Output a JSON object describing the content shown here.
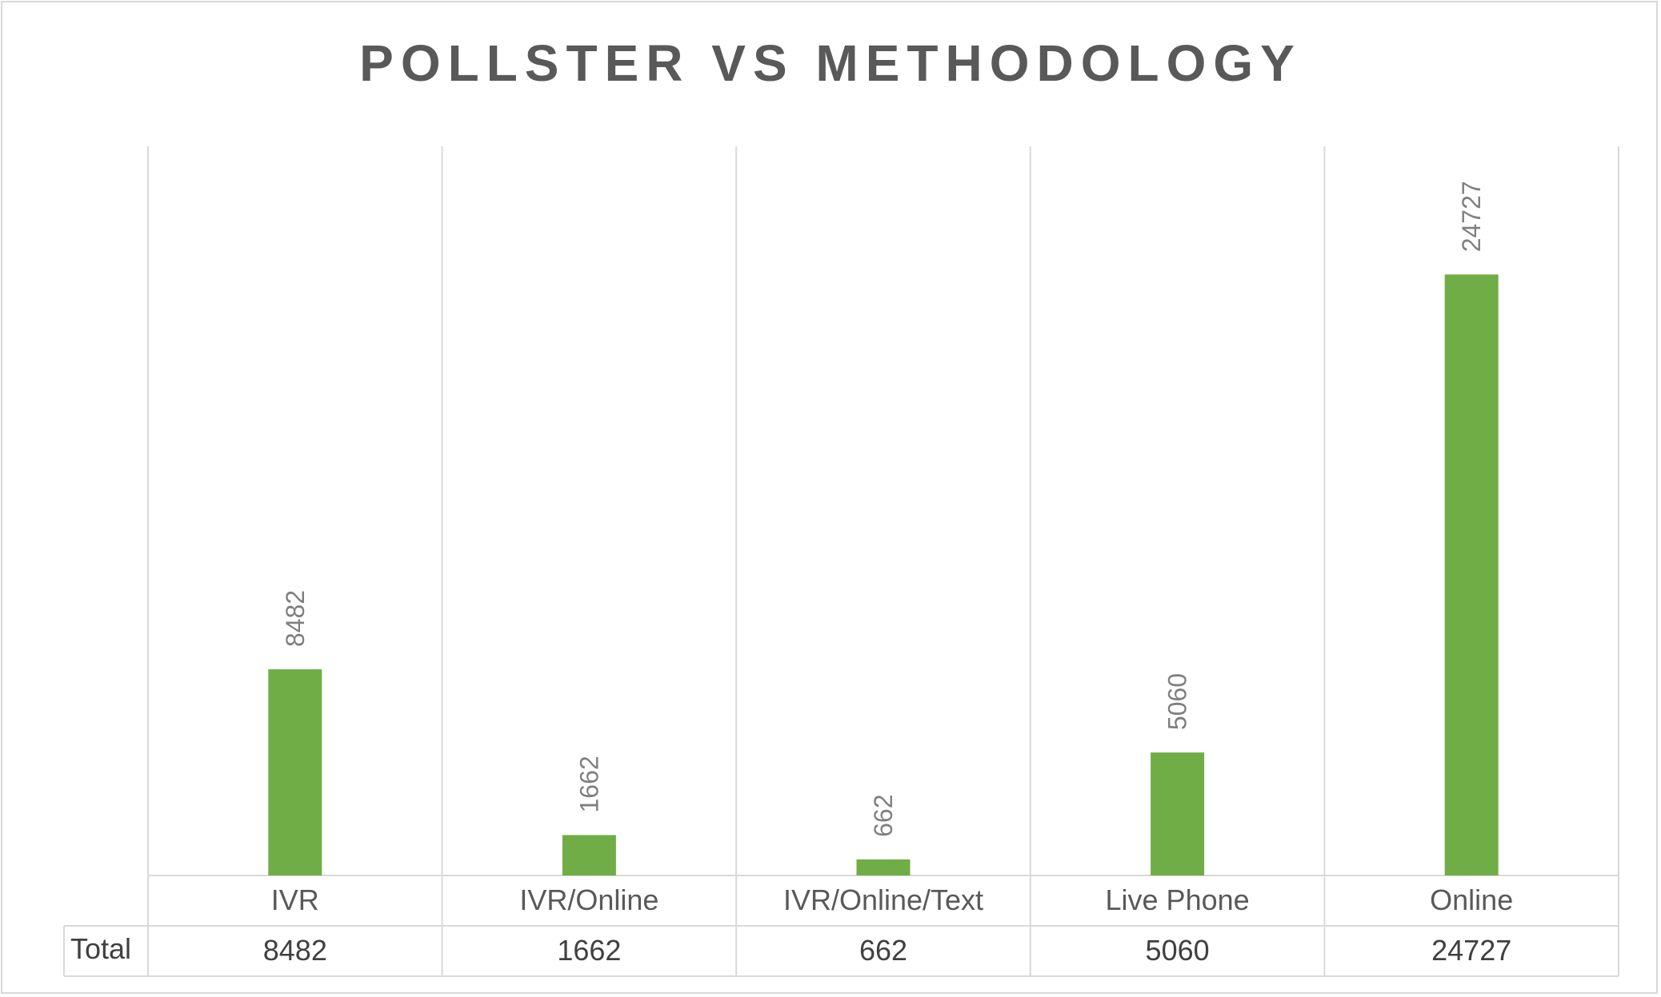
{
  "chart_data": {
    "type": "bar",
    "title": "POLLSTER VS METHODOLOGY",
    "categories": [
      "IVR",
      "IVR/Online",
      "IVR/Online/Text",
      "Live Phone",
      "Online"
    ],
    "series": [
      {
        "name": "Total",
        "values": [
          8482,
          1662,
          662,
          5060,
          24727
        ],
        "color": "#70ad47"
      }
    ],
    "ylim": [
      0,
      30000
    ],
    "grid": false,
    "legend": "none",
    "data_table": {
      "row_header": "Total",
      "values": [
        "8482",
        "1662",
        "662",
        "5060",
        "24727"
      ]
    }
  }
}
